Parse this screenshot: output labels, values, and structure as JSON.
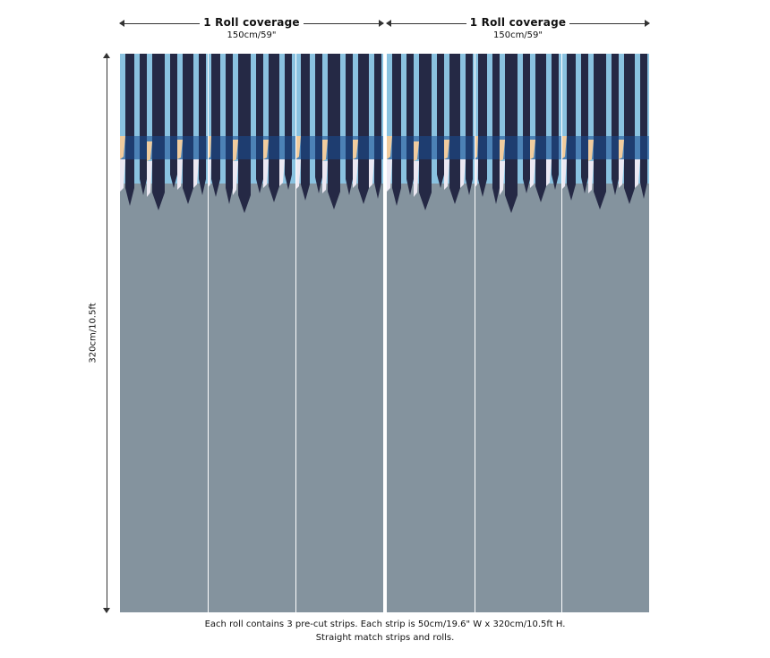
{
  "roll_coverage": {
    "title": "1 Roll coverage",
    "width": "150cm/59\""
  },
  "height_label": "320cm/10.5ft",
  "caption": {
    "line1": "Each roll contains 3 pre-cut strips.  Each strip is 50cm/19.6\" W x 320cm/10.5ft H.",
    "line2": "Straight match strips and rolls."
  },
  "colors": {
    "wall_grey": "#84939e",
    "light_blue": "#8ac2e0",
    "navy": "#252945",
    "royal_blue": "#1a4f94",
    "peach": "#f1cc9e",
    "pale_lilac": "#ece8f2",
    "seam": "#ffffff"
  }
}
